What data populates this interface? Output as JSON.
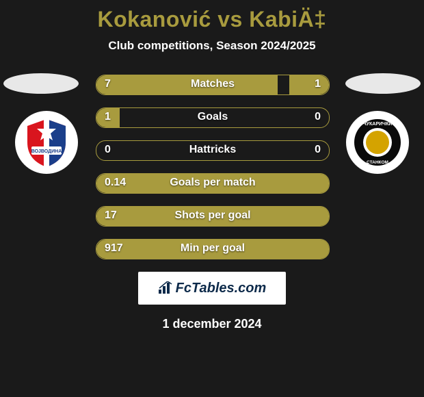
{
  "title": "Kokanović vs KabiÄ‡",
  "subtitle": "Club competitions, Season 2024/2025",
  "date": "1 december 2024",
  "logo_text": "FcTables.com",
  "colors": {
    "background": "#1a1a1a",
    "accent": "#a89b3e",
    "text_light": "#ffffff",
    "ellipse": "#e8e8e8",
    "logo_bg": "#ffffff",
    "logo_fg": "#0d2a4a"
  },
  "crest_left": {
    "bg": "#ffffff",
    "stripes": [
      "#d9151e",
      "#ffffff",
      "#1a3e8a"
    ]
  },
  "crest_right": {
    "bg": "#ffffff",
    "ring": "#0a0a0a",
    "inner": "#d4a300"
  },
  "rows": [
    {
      "label": "Matches",
      "left": "7",
      "right": "1",
      "left_pct": 78,
      "right_pct": 17
    },
    {
      "label": "Goals",
      "left": "1",
      "right": "0",
      "left_pct": 10,
      "right_pct": 0
    },
    {
      "label": "Hattricks",
      "left": "0",
      "right": "0",
      "left_pct": 0,
      "right_pct": 0
    },
    {
      "label": "Goals per match",
      "left": "0.14",
      "right": "",
      "left_pct": 100,
      "right_pct": 0
    },
    {
      "label": "Shots per goal",
      "left": "17",
      "right": "",
      "left_pct": 100,
      "right_pct": 0
    },
    {
      "label": "Min per goal",
      "left": "917",
      "right": "",
      "left_pct": 100,
      "right_pct": 0
    }
  ]
}
